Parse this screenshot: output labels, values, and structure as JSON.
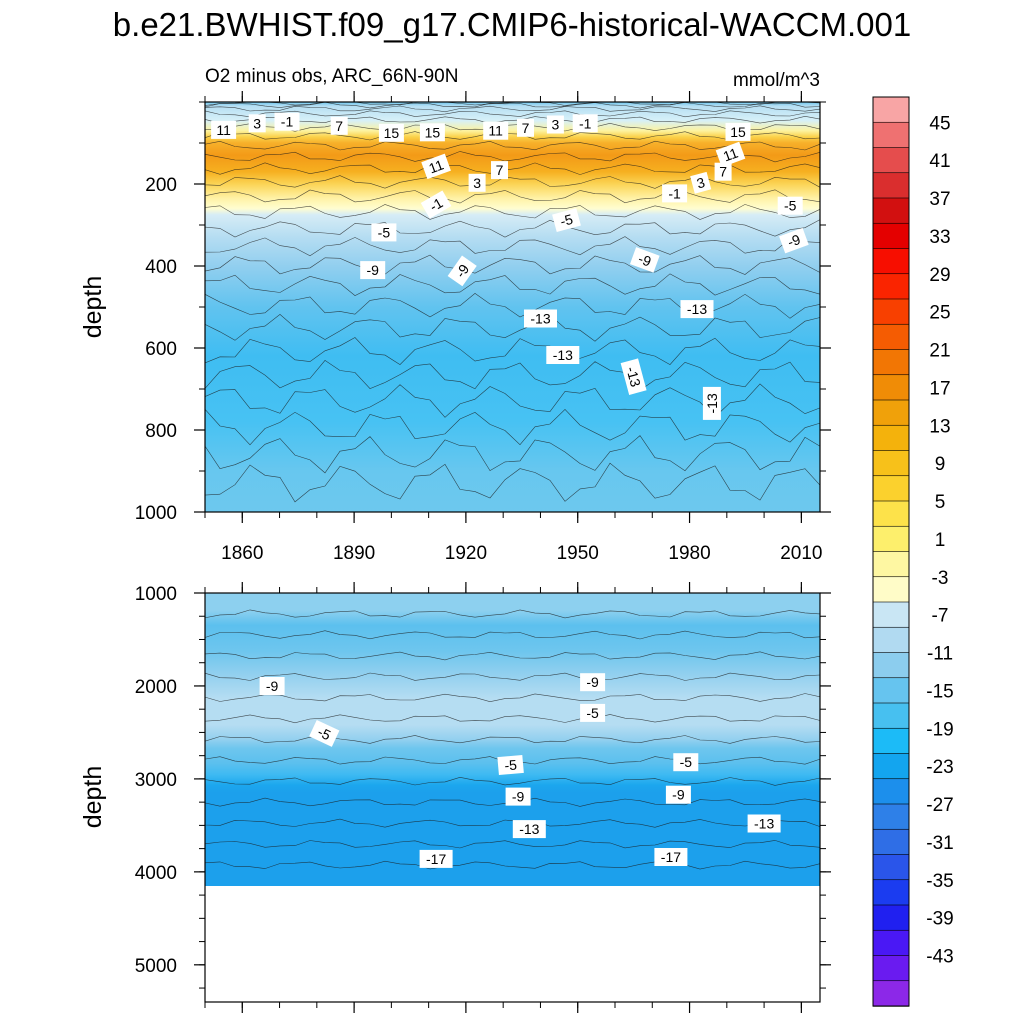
{
  "title": "b.e21.BWHIST.f09_g17.CMIP6-historical-WACCM.001",
  "chart_data": {
    "type": "heatmap",
    "subtitle_left": "O2 minus obs, ARC_66N-90N",
    "subtitle_right": "mmol/m^3",
    "x_ticks": [
      "1860",
      "1890",
      "1920",
      "1950",
      "1980",
      "2010"
    ],
    "x_tick_values": [
      1860,
      1890,
      1920,
      1950,
      1980,
      2010
    ],
    "x_range": [
      1850,
      2015
    ],
    "panels": [
      {
        "name": "upper",
        "ylabel": "depth",
        "y_range": [
          0,
          1000
        ],
        "y_ticks": [
          "200",
          "400",
          "600",
          "800",
          "1000"
        ],
        "y_tick_values": [
          200,
          400,
          600,
          800,
          1000
        ],
        "contour_labels": [
          {
            "text": "11",
            "x": 1855,
            "y": 68,
            "rot": 0
          },
          {
            "text": "3",
            "x": 1864,
            "y": 52,
            "rot": 0
          },
          {
            "text": "-1",
            "x": 1872,
            "y": 48,
            "rot": 0
          },
          {
            "text": "7",
            "x": 1886,
            "y": 58,
            "rot": 0
          },
          {
            "text": "15",
            "x": 1900,
            "y": 75,
            "rot": 0
          },
          {
            "text": "15",
            "x": 1911,
            "y": 74,
            "rot": 0
          },
          {
            "text": "11",
            "x": 1928,
            "y": 70,
            "rot": 0
          },
          {
            "text": "7",
            "x": 1936,
            "y": 63,
            "rot": 0
          },
          {
            "text": "3",
            "x": 1944,
            "y": 55,
            "rot": 0
          },
          {
            "text": "-1",
            "x": 1952,
            "y": 52,
            "rot": 0
          },
          {
            "text": "15",
            "x": 1993,
            "y": 73,
            "rot": 0
          },
          {
            "text": "11",
            "x": 1991,
            "y": 128,
            "rot": -20
          },
          {
            "text": "7",
            "x": 1989,
            "y": 170,
            "rot": 0
          },
          {
            "text": "11",
            "x": 1912,
            "y": 157,
            "rot": -20
          },
          {
            "text": "7",
            "x": 1929,
            "y": 166,
            "rot": 0
          },
          {
            "text": "3",
            "x": 1923,
            "y": 197,
            "rot": 0
          },
          {
            "text": "3",
            "x": 1983,
            "y": 197,
            "rot": -15
          },
          {
            "text": "-1",
            "x": 1912,
            "y": 250,
            "rot": -30
          },
          {
            "text": "-1",
            "x": 1976,
            "y": 223,
            "rot": 0
          },
          {
            "text": "-5",
            "x": 1898,
            "y": 318,
            "rot": 0
          },
          {
            "text": "-5",
            "x": 1947,
            "y": 288,
            "rot": -15
          },
          {
            "text": "-5",
            "x": 2007,
            "y": 253,
            "rot": 0
          },
          {
            "text": "-9",
            "x": 1895,
            "y": 410,
            "rot": 0
          },
          {
            "text": "-9",
            "x": 1919,
            "y": 412,
            "rot": -55
          },
          {
            "text": "-9",
            "x": 1968,
            "y": 385,
            "rot": 20
          },
          {
            "text": "-9",
            "x": 2008,
            "y": 338,
            "rot": -20
          },
          {
            "text": "-13",
            "x": 1940,
            "y": 528,
            "rot": 0
          },
          {
            "text": "-13",
            "x": 1982,
            "y": 505,
            "rot": 0
          },
          {
            "text": "-13",
            "x": 1946,
            "y": 617,
            "rot": 0
          },
          {
            "text": "-13",
            "x": 1965,
            "y": 670,
            "rot": 75
          },
          {
            "text": "-13",
            "x": 1986,
            "y": 735,
            "rot": -90
          }
        ]
      },
      {
        "name": "lower",
        "ylabel": "depth",
        "y_range": [
          1000,
          5400
        ],
        "y_ticks": [
          "1000",
          "2000",
          "3000",
          "4000",
          "5000"
        ],
        "y_tick_values": [
          1000,
          2000,
          3000,
          4000,
          5000
        ],
        "data_bottom_depth": 4120,
        "contour_labels": [
          {
            "text": "-9",
            "x": 1868,
            "y": 2000,
            "rot": 0
          },
          {
            "text": "-9",
            "x": 1954,
            "y": 1960,
            "rot": 0
          },
          {
            "text": "-5",
            "x": 1954,
            "y": 2290,
            "rot": 0
          },
          {
            "text": "-5",
            "x": 1882,
            "y": 2510,
            "rot": 25
          },
          {
            "text": "-5",
            "x": 1932,
            "y": 2850,
            "rot": -5
          },
          {
            "text": "-5",
            "x": 1979,
            "y": 2820,
            "rot": 0
          },
          {
            "text": "-9",
            "x": 1934,
            "y": 3190,
            "rot": 0
          },
          {
            "text": "-9",
            "x": 1977,
            "y": 3170,
            "rot": 0
          },
          {
            "text": "-13",
            "x": 1937,
            "y": 3540,
            "rot": 0
          },
          {
            "text": "-13",
            "x": 2000,
            "y": 3480,
            "rot": 0
          },
          {
            "text": "-17",
            "x": 1912,
            "y": 3860,
            "rot": 0
          },
          {
            "text": "-17",
            "x": 1975,
            "y": 3840,
            "rot": 0
          }
        ]
      }
    ],
    "colorbar": {
      "labels": [
        "45",
        "41",
        "37",
        "33",
        "29",
        "25",
        "21",
        "17",
        "13",
        "9",
        "5",
        "1",
        "-3",
        "-7",
        "-11",
        "-15",
        "-19",
        "-23",
        "-27",
        "-31",
        "-35",
        "-39",
        "-43"
      ],
      "colors": [
        "#8c28e8",
        "#6a1bf0",
        "#4a18f5",
        "#2020f0",
        "#1b3cf0",
        "#2a55ea",
        "#2f6ee6",
        "#2e80e8",
        "#1c8fec",
        "#13a5ef",
        "#1cbbf7",
        "#47c0f0",
        "#66c4ef",
        "#8ccdee",
        "#b1daf1",
        "#c9e6f4",
        "#fffcc8",
        "#fef7a2",
        "#fdef6c",
        "#fde24a",
        "#fbd12d",
        "#f7c11a",
        "#f4b20c",
        "#f0a10a",
        "#f08c06",
        "#f27604",
        "#f55c02",
        "#f84000",
        "#fa2400",
        "#f70e00",
        "#e40000",
        "#d21010",
        "#da2e2e",
        "#e54d4d",
        "#ef7171",
        "#f8a5a5"
      ],
      "ticks_between": true
    }
  }
}
